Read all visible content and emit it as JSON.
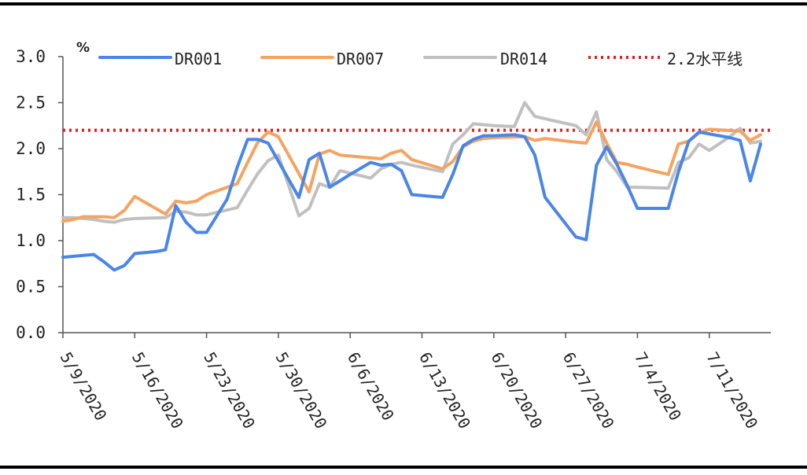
{
  "chart_data": {
    "type": "line",
    "unit_label": "%",
    "ylim": [
      0,
      3.0
    ],
    "y_ticks": [
      "0.0",
      "0.5",
      "1.0",
      "1.5",
      "2.0",
      "2.5",
      "3.0"
    ],
    "x_tick_labels": [
      "5/9/2020",
      "5/16/2020",
      "5/23/2020",
      "5/30/2020",
      "6/6/2020",
      "6/13/2020",
      "6/20/2020",
      "6/27/2020",
      "7/4/2020",
      "7/11/2020"
    ],
    "x_range": [
      "2020-05-09",
      "2020-07-16"
    ],
    "grid": false,
    "legend_position": "top",
    "series": [
      {
        "name": "DR001",
        "color": "#4a86e8",
        "points": [
          [
            "2020-05-09",
            0.82
          ],
          [
            "2020-05-11",
            0.84
          ],
          [
            "2020-05-12",
            0.85
          ],
          [
            "2020-05-13",
            0.77
          ],
          [
            "2020-05-14",
            0.68
          ],
          [
            "2020-05-15",
            0.73
          ],
          [
            "2020-05-16",
            0.86
          ],
          [
            "2020-05-18",
            0.88
          ],
          [
            "2020-05-19",
            0.9
          ],
          [
            "2020-05-20",
            1.38
          ],
          [
            "2020-05-21",
            1.2
          ],
          [
            "2020-05-22",
            1.09
          ],
          [
            "2020-05-23",
            1.09
          ],
          [
            "2020-05-25",
            1.45
          ],
          [
            "2020-05-26",
            1.8
          ],
          [
            "2020-05-27",
            2.1
          ],
          [
            "2020-05-28",
            2.1
          ],
          [
            "2020-05-29",
            2.06
          ],
          [
            "2020-06-01",
            1.47
          ],
          [
            "2020-06-02",
            1.88
          ],
          [
            "2020-06-03",
            1.95
          ],
          [
            "2020-06-04",
            1.58
          ],
          [
            "2020-06-05",
            1.65
          ],
          [
            "2020-06-06",
            1.72
          ],
          [
            "2020-06-08",
            1.85
          ],
          [
            "2020-06-09",
            1.82
          ],
          [
            "2020-06-10",
            1.83
          ],
          [
            "2020-06-11",
            1.76
          ],
          [
            "2020-06-12",
            1.5
          ],
          [
            "2020-06-15",
            1.47
          ],
          [
            "2020-06-16",
            1.72
          ],
          [
            "2020-06-17",
            2.03
          ],
          [
            "2020-06-18",
            2.1
          ],
          [
            "2020-06-19",
            2.14
          ],
          [
            "2020-06-20",
            2.14
          ],
          [
            "2020-06-22",
            2.15
          ],
          [
            "2020-06-23",
            2.13
          ],
          [
            "2020-06-24",
            1.93
          ],
          [
            "2020-06-25",
            1.47
          ],
          [
            "2020-06-28",
            1.04
          ],
          [
            "2020-06-29",
            1.01
          ],
          [
            "2020-06-30",
            1.82
          ],
          [
            "2020-07-01",
            2.02
          ],
          [
            "2020-07-02",
            1.83
          ],
          [
            "2020-07-03",
            1.6
          ],
          [
            "2020-07-04",
            1.35
          ],
          [
            "2020-07-07",
            1.35
          ],
          [
            "2020-07-08",
            1.75
          ],
          [
            "2020-07-09",
            2.08
          ],
          [
            "2020-07-10",
            2.18
          ],
          [
            "2020-07-11",
            2.16
          ],
          [
            "2020-07-13",
            2.12
          ],
          [
            "2020-07-14",
            2.09
          ],
          [
            "2020-07-15",
            1.65
          ],
          [
            "2020-07-16",
            2.05
          ]
        ]
      },
      {
        "name": "DR007",
        "color": "#f4a460",
        "points": [
          [
            "2020-05-09",
            1.21
          ],
          [
            "2020-05-10",
            1.23
          ],
          [
            "2020-05-11",
            1.26
          ],
          [
            "2020-05-12",
            1.26
          ],
          [
            "2020-05-13",
            1.26
          ],
          [
            "2020-05-14",
            1.25
          ],
          [
            "2020-05-15",
            1.33
          ],
          [
            "2020-05-16",
            1.48
          ],
          [
            "2020-05-19",
            1.29
          ],
          [
            "2020-05-20",
            1.43
          ],
          [
            "2020-05-21",
            1.41
          ],
          [
            "2020-05-22",
            1.43
          ],
          [
            "2020-05-23",
            1.5
          ],
          [
            "2020-05-26",
            1.62
          ],
          [
            "2020-05-27",
            1.85
          ],
          [
            "2020-05-28",
            2.07
          ],
          [
            "2020-05-29",
            2.18
          ],
          [
            "2020-05-30",
            2.13
          ],
          [
            "2020-06-02",
            1.53
          ],
          [
            "2020-06-03",
            1.94
          ],
          [
            "2020-06-04",
            1.98
          ],
          [
            "2020-06-05",
            1.93
          ],
          [
            "2020-06-08",
            1.9
          ],
          [
            "2020-06-09",
            1.89
          ],
          [
            "2020-06-10",
            1.95
          ],
          [
            "2020-06-11",
            1.98
          ],
          [
            "2020-06-12",
            1.88
          ],
          [
            "2020-06-15",
            1.78
          ],
          [
            "2020-06-16",
            1.86
          ],
          [
            "2020-06-17",
            2.02
          ],
          [
            "2020-06-18",
            2.08
          ],
          [
            "2020-06-19",
            2.11
          ],
          [
            "2020-06-20",
            2.12
          ],
          [
            "2020-06-23",
            2.13
          ],
          [
            "2020-06-24",
            2.09
          ],
          [
            "2020-06-25",
            2.11
          ],
          [
            "2020-06-28",
            2.07
          ],
          [
            "2020-06-29",
            2.06
          ],
          [
            "2020-06-30",
            2.29
          ],
          [
            "2020-07-01",
            2.06
          ],
          [
            "2020-07-02",
            1.85
          ],
          [
            "2020-07-03",
            1.83
          ],
          [
            "2020-07-04",
            1.8
          ],
          [
            "2020-07-07",
            1.72
          ],
          [
            "2020-07-08",
            2.05
          ],
          [
            "2020-07-09",
            2.08
          ],
          [
            "2020-07-10",
            2.17
          ],
          [
            "2020-07-11",
            2.21
          ],
          [
            "2020-07-14",
            2.19
          ],
          [
            "2020-07-15",
            2.09
          ],
          [
            "2020-07-16",
            2.15
          ]
        ]
      },
      {
        "name": "DR014",
        "color": "#c0c0c0",
        "points": [
          [
            "2020-05-09",
            1.25
          ],
          [
            "2020-05-10",
            1.25
          ],
          [
            "2020-05-11",
            1.24
          ],
          [
            "2020-05-12",
            1.23
          ],
          [
            "2020-05-13",
            1.21
          ],
          [
            "2020-05-14",
            1.2
          ],
          [
            "2020-05-15",
            1.23
          ],
          [
            "2020-05-16",
            1.24
          ],
          [
            "2020-05-19",
            1.25
          ],
          [
            "2020-05-20",
            1.32
          ],
          [
            "2020-05-21",
            1.31
          ],
          [
            "2020-05-22",
            1.28
          ],
          [
            "2020-05-23",
            1.28
          ],
          [
            "2020-05-26",
            1.36
          ],
          [
            "2020-05-27",
            1.55
          ],
          [
            "2020-05-28",
            1.73
          ],
          [
            "2020-05-29",
            1.87
          ],
          [
            "2020-05-30",
            1.93
          ],
          [
            "2020-06-01",
            1.27
          ],
          [
            "2020-06-02",
            1.35
          ],
          [
            "2020-06-03",
            1.62
          ],
          [
            "2020-06-04",
            1.58
          ],
          [
            "2020-06-05",
            1.76
          ],
          [
            "2020-06-08",
            1.68
          ],
          [
            "2020-06-09",
            1.78
          ],
          [
            "2020-06-10",
            1.83
          ],
          [
            "2020-06-11",
            1.85
          ],
          [
            "2020-06-12",
            1.82
          ],
          [
            "2020-06-15",
            1.75
          ],
          [
            "2020-06-16",
            2.05
          ],
          [
            "2020-06-17",
            2.15
          ],
          [
            "2020-06-18",
            2.27
          ],
          [
            "2020-06-19",
            2.26
          ],
          [
            "2020-06-20",
            2.25
          ],
          [
            "2020-06-22",
            2.24
          ],
          [
            "2020-06-23",
            2.5
          ],
          [
            "2020-06-24",
            2.35
          ],
          [
            "2020-06-28",
            2.25
          ],
          [
            "2020-06-29",
            2.15
          ],
          [
            "2020-06-30",
            2.4
          ],
          [
            "2020-07-01",
            1.88
          ],
          [
            "2020-07-02",
            1.75
          ],
          [
            "2020-07-03",
            1.58
          ],
          [
            "2020-07-04",
            1.58
          ],
          [
            "2020-07-07",
            1.57
          ],
          [
            "2020-07-08",
            1.85
          ],
          [
            "2020-07-09",
            1.9
          ],
          [
            "2020-07-10",
            2.05
          ],
          [
            "2020-07-11",
            1.98
          ],
          [
            "2020-07-13",
            2.13
          ],
          [
            "2020-07-14",
            2.22
          ],
          [
            "2020-07-15",
            2.06
          ],
          [
            "2020-07-16",
            2.08
          ]
        ]
      }
    ],
    "reference_line": {
      "name": "2.2水平线",
      "value": 2.2,
      "color": "#e02020",
      "style": "dotted"
    }
  }
}
